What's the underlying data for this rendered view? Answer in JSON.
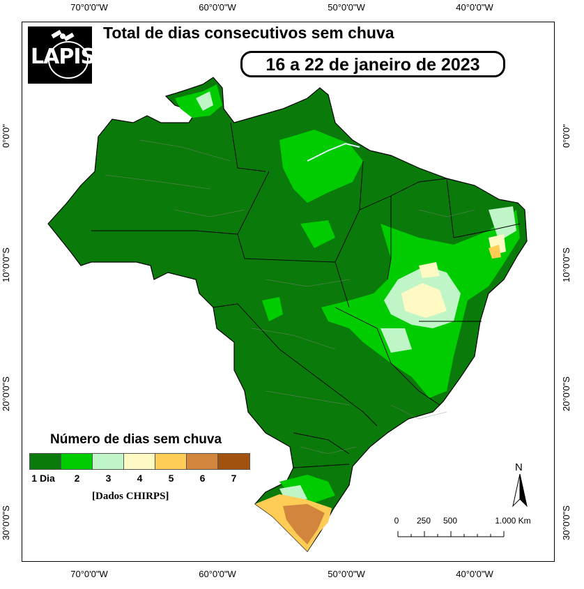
{
  "map": {
    "title": "Total de dias consecutivos sem chuva",
    "date_range": "16 a 22 de janeiro de 2023",
    "logo_text": "LAPIS",
    "source": "[Dados CHIRPS]",
    "north_label": "N"
  },
  "axes": {
    "longitude_labels": [
      "70°0'0\"W",
      "60°0'0\"W",
      "50°0'0\"W",
      "40°0'0\"W"
    ],
    "latitude_labels": [
      "0°0'0\"",
      "10°0'0\"S",
      "20°0'0\"S",
      "30°0'0\"S"
    ]
  },
  "legend": {
    "title": "Número de dias sem chuva",
    "items": [
      {
        "label": "1 Dia",
        "color": "#0a7a0a"
      },
      {
        "label": "2",
        "color": "#00cc00"
      },
      {
        "label": "3",
        "color": "#bff5c7"
      },
      {
        "label": "4",
        "color": "#fff9c4"
      },
      {
        "label": "5",
        "color": "#ffcc55"
      },
      {
        "label": "6",
        "color": "#d2853d"
      },
      {
        "label": "7",
        "color": "#a0520e"
      }
    ]
  },
  "scale_bar": {
    "labels": [
      "0",
      "250",
      "500",
      "1.000 Km"
    ]
  },
  "colors": {
    "dominant": "#0a7a0a",
    "border_state": "#888888",
    "border_country": "#000000",
    "river": "#e8f4ff"
  }
}
